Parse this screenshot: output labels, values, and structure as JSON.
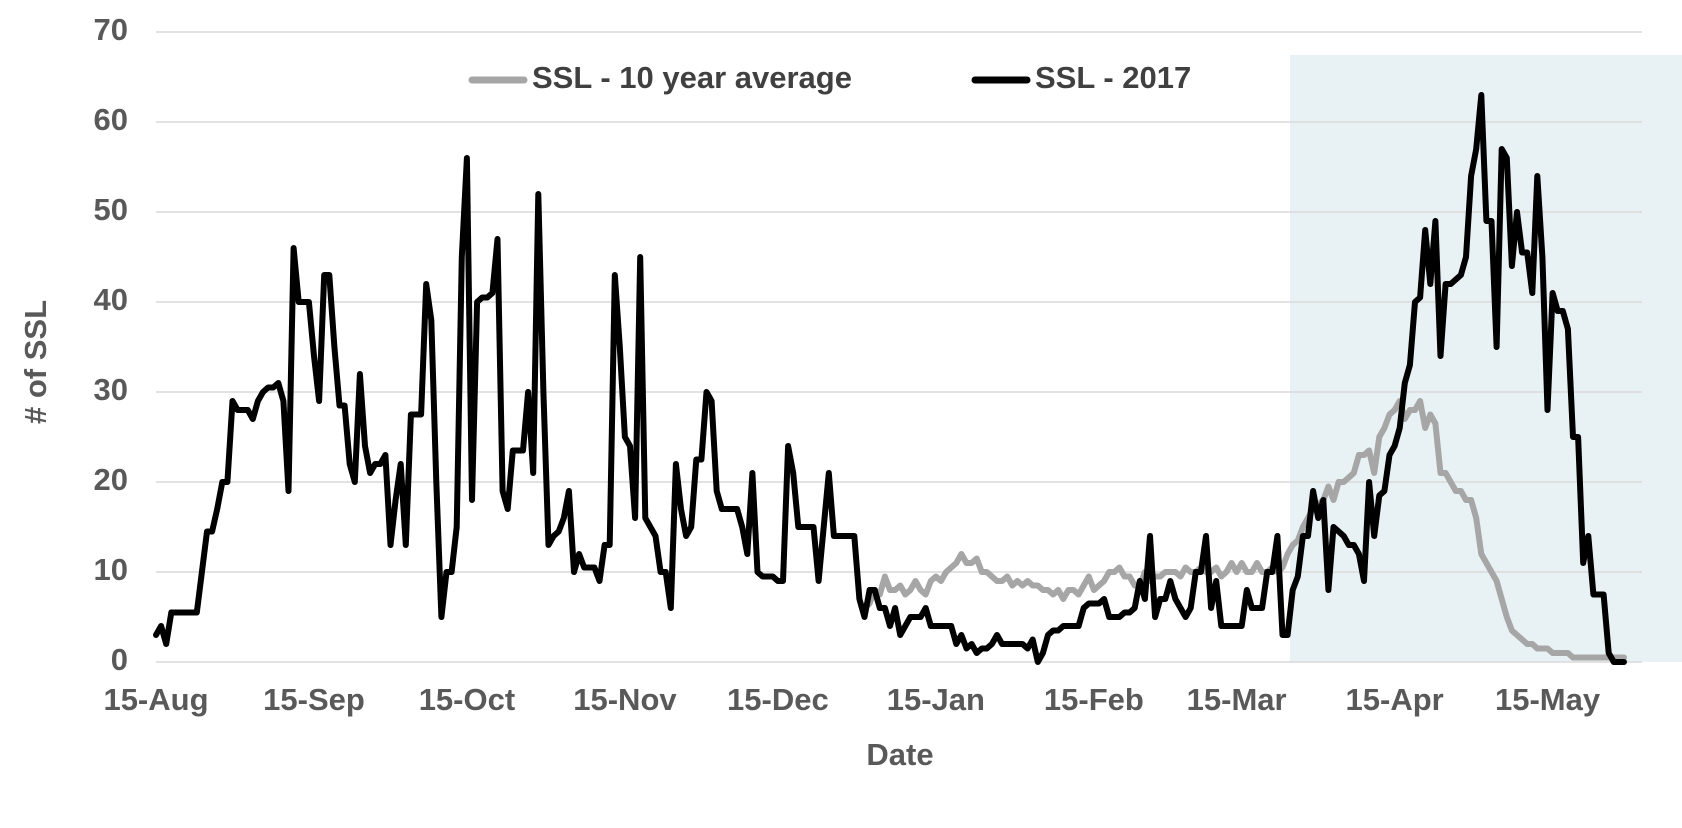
{
  "chart_data": {
    "type": "line",
    "xlabel": "Date",
    "ylabel": "# of SSL",
    "categories": [
      "15-Aug",
      null,
      null,
      null,
      null,
      null,
      null,
      null,
      null,
      null,
      null,
      null,
      null,
      null,
      null,
      null,
      null,
      null,
      null,
      null,
      null,
      null,
      null,
      null,
      null,
      null,
      null,
      null,
      null,
      null,
      null,
      "15-Sep",
      null,
      null,
      null,
      null,
      null,
      null,
      null,
      null,
      null,
      null,
      null,
      null,
      null,
      null,
      null,
      null,
      null,
      null,
      null,
      null,
      null,
      null,
      null,
      null,
      null,
      null,
      null,
      null,
      null,
      "15-Oct",
      null,
      null,
      null,
      null,
      null,
      null,
      null,
      null,
      null,
      null,
      null,
      null,
      null,
      null,
      null,
      null,
      null,
      null,
      null,
      null,
      null,
      null,
      null,
      null,
      null,
      null,
      null,
      null,
      null,
      null,
      "15-Nov",
      null,
      null,
      null,
      null,
      null,
      null,
      null,
      null,
      null,
      null,
      null,
      null,
      null,
      null,
      null,
      null,
      null,
      null,
      null,
      null,
      null,
      null,
      null,
      null,
      null,
      null,
      null,
      null,
      null,
      "15-Dec",
      null,
      null,
      null,
      null,
      null,
      null,
      null,
      null,
      null,
      null,
      null,
      null,
      null,
      null,
      null,
      null,
      null,
      null,
      null,
      null,
      null,
      null,
      null,
      null,
      null,
      null,
      null,
      null,
      null,
      null,
      "15-Jan",
      null,
      null,
      null,
      null,
      null,
      null,
      null,
      null,
      null,
      null,
      null,
      null,
      null,
      null,
      null,
      null,
      null,
      null,
      null,
      null,
      null,
      null,
      null,
      null,
      null,
      null,
      null,
      null,
      null,
      null,
      "15-Feb",
      null,
      null,
      null,
      null,
      null,
      null,
      null,
      null,
      null,
      null,
      null,
      null,
      null,
      null,
      null,
      null,
      null,
      null,
      null,
      null,
      null,
      null,
      null,
      null,
      null,
      null,
      null,
      "15-Mar",
      null,
      null,
      null,
      null,
      null,
      null,
      null,
      null,
      null,
      null,
      null,
      null,
      null,
      null,
      null,
      null,
      null,
      null,
      null,
      null,
      null,
      null,
      null,
      null,
      null,
      null,
      null,
      null,
      null,
      null,
      "15-Apr",
      null,
      null,
      null,
      null,
      null,
      null,
      null,
      null,
      null,
      null,
      null,
      null,
      null,
      null,
      null,
      null,
      null,
      null,
      null,
      null,
      null,
      null,
      null,
      null,
      null,
      null,
      null,
      null,
      null,
      "15-May",
      null,
      null,
      null,
      null,
      null,
      null,
      null,
      null,
      null,
      null,
      null,
      null,
      null,
      null,
      null
    ],
    "series": [
      {
        "name": "SSL - 10 year average",
        "color": "#a6a6a6",
        "values": [
          null,
          null,
          null,
          null,
          null,
          null,
          null,
          null,
          null,
          null,
          null,
          null,
          null,
          null,
          null,
          null,
          null,
          null,
          null,
          null,
          null,
          null,
          null,
          null,
          null,
          null,
          null,
          null,
          null,
          null,
          null,
          null,
          null,
          null,
          null,
          null,
          null,
          null,
          null,
          null,
          null,
          null,
          null,
          null,
          null,
          null,
          null,
          null,
          null,
          null,
          null,
          null,
          null,
          null,
          null,
          null,
          null,
          null,
          null,
          null,
          null,
          null,
          null,
          null,
          null,
          null,
          null,
          null,
          null,
          null,
          null,
          null,
          null,
          null,
          null,
          null,
          null,
          null,
          null,
          null,
          null,
          null,
          null,
          null,
          null,
          null,
          null,
          null,
          null,
          null,
          null,
          null,
          null,
          null,
          null,
          null,
          null,
          null,
          null,
          null,
          null,
          null,
          null,
          null,
          null,
          null,
          null,
          null,
          null,
          null,
          null,
          null,
          null,
          null,
          null,
          null,
          null,
          null,
          null,
          null,
          null,
          null,
          null,
          null,
          null,
          null,
          null,
          null,
          null,
          null,
          null,
          null,
          null,
          null,
          null,
          null,
          null,
          null,
          null,
          6,
          6.5,
          8,
          7.5,
          9.5,
          8,
          8,
          8.5,
          7.5,
          8,
          9,
          8,
          7.5,
          9,
          9.5,
          9,
          10,
          10.5,
          11,
          12,
          11,
          11,
          11.5,
          10,
          10,
          9.5,
          9,
          9,
          9.5,
          8.5,
          9,
          8.5,
          9,
          8.5,
          8.5,
          8,
          8,
          7.5,
          8,
          7,
          8,
          8,
          7.5,
          8.5,
          9.5,
          8,
          8.5,
          9,
          10,
          10,
          10.5,
          9.5,
          9.5,
          8.5,
          8.5,
          10,
          9,
          9.5,
          9.5,
          10,
          10,
          10,
          9.5,
          10.5,
          10,
          10,
          10.5,
          10,
          10,
          10.5,
          9.5,
          10,
          11,
          10,
          11,
          10,
          10,
          11,
          10,
          10,
          10.5,
          10,
          10.5,
          12,
          13,
          13.5,
          15,
          16,
          17,
          17.5,
          18,
          19.5,
          18,
          20,
          20,
          20.5,
          21,
          23,
          23,
          23.5,
          21,
          25,
          26,
          27.5,
          28,
          29,
          27,
          28,
          28,
          29,
          26,
          27.5,
          26.5,
          21,
          21,
          20,
          19,
          19,
          18,
          18,
          16,
          12,
          11,
          10,
          9,
          7,
          5,
          3.5,
          3,
          2.5,
          2,
          2,
          1.5,
          1.5,
          1.5,
          1,
          1,
          1,
          1,
          0.5,
          0.5,
          0.5,
          0.5,
          0.5,
          0.5,
          0.5,
          0.5,
          0.5,
          0.5,
          0.5
        ]
      },
      {
        "name": "SSL - 2017",
        "color": "#000000",
        "values": [
          3,
          4,
          2,
          5.5,
          5.5,
          5.5,
          5.5,
          5.5,
          5.5,
          10,
          14.5,
          14.5,
          17,
          20,
          20,
          29,
          28,
          28,
          28,
          27,
          29,
          30,
          30.5,
          30.5,
          31,
          29,
          19,
          46,
          40,
          40,
          40,
          34,
          29,
          43,
          43,
          35,
          28.5,
          28.5,
          22,
          20,
          32,
          24,
          21,
          22,
          22,
          23,
          13,
          18,
          22,
          13,
          27.5,
          27.5,
          27.5,
          42,
          38,
          20,
          5,
          10,
          10,
          15,
          45,
          56,
          18,
          40,
          40.5,
          40.5,
          41,
          47,
          19,
          17,
          23.5,
          23.5,
          23.5,
          30,
          21,
          52,
          30,
          13,
          14,
          14.5,
          16,
          19,
          10,
          12,
          10.5,
          10.5,
          10.5,
          9,
          13,
          13,
          43,
          35,
          25,
          24,
          16,
          45,
          16,
          15,
          14,
          10,
          10,
          6,
          22,
          17,
          14,
          15,
          22.5,
          22.5,
          30,
          29,
          19,
          17,
          17,
          17,
          17,
          15,
          12,
          21,
          10,
          9.5,
          9.5,
          9.5,
          9,
          9,
          24,
          21,
          15,
          15,
          15,
          15,
          9,
          15,
          21,
          14,
          14,
          14,
          14,
          14,
          7,
          5,
          8,
          8,
          6,
          6,
          4,
          6,
          3,
          4,
          5,
          5,
          5,
          6,
          4,
          4,
          4,
          4,
          4,
          2,
          3,
          1.5,
          2,
          1,
          1.5,
          1.5,
          2,
          3,
          2,
          2,
          2,
          2,
          2,
          1.5,
          2.5,
          0,
          1,
          3,
          3.5,
          3.5,
          4,
          4,
          4,
          4,
          6,
          6.5,
          6.5,
          6.5,
          7,
          5,
          5,
          5,
          5.5,
          5.5,
          6,
          9,
          7,
          14,
          5,
          7,
          7,
          9,
          7,
          6,
          5,
          6,
          10,
          10,
          14,
          6,
          9,
          4,
          4,
          4,
          4,
          4,
          8,
          6,
          6,
          6,
          10,
          10,
          14,
          3,
          3,
          8,
          9.5,
          14,
          14,
          19,
          16,
          18,
          8,
          15,
          14.5,
          14,
          13,
          13,
          12,
          9,
          20,
          14,
          18.5,
          19,
          23,
          24,
          26,
          31,
          33,
          40,
          40.5,
          48,
          42,
          49,
          34,
          42,
          42,
          42.5,
          43,
          45,
          54,
          57,
          63,
          49,
          49,
          35,
          57,
          56,
          44,
          50,
          45.5,
          45.5,
          41,
          54,
          45,
          28,
          41,
          39,
          39,
          37,
          25,
          25,
          11,
          14,
          7.5,
          7.5,
          7.5,
          1,
          0,
          0,
          0
        ]
      }
    ],
    "ylim": [
      0,
      70
    ],
    "yticks": [
      0,
      10,
      20,
      30,
      40,
      50,
      60,
      70
    ],
    "grid": true,
    "legend": "top"
  }
}
